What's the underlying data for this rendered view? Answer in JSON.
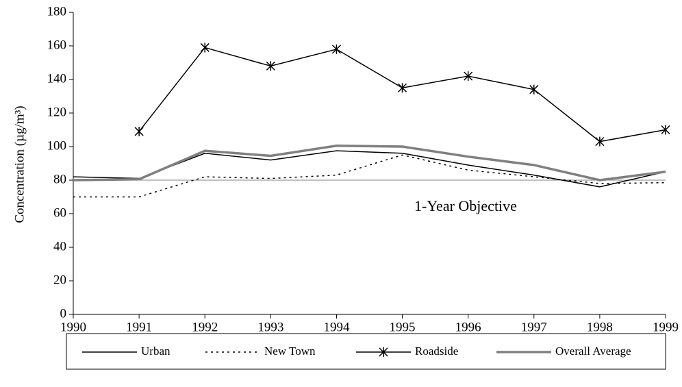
{
  "chart_data": {
    "type": "line",
    "y_label": "Concentration (µg/m³)",
    "x": [
      1990,
      1991,
      1992,
      1993,
      1994,
      1995,
      1996,
      1997,
      1998,
      1999
    ],
    "xlim": [
      1990,
      1999
    ],
    "xticks": [
      1990,
      1991,
      1992,
      1993,
      1994,
      1995,
      1996,
      1997,
      1998,
      1999
    ],
    "ylim": [
      0,
      180
    ],
    "yticks": [
      0,
      20,
      40,
      60,
      80,
      100,
      120,
      140,
      160,
      180
    ],
    "objective": {
      "value": 80,
      "label": "1-Year Objective"
    },
    "legend": "bottom",
    "series": [
      {
        "name": "Urban",
        "color": "#000000",
        "line_style": "solid",
        "line_width": 1.5,
        "values": [
          82,
          81,
          96,
          92,
          97.5,
          96,
          89,
          83,
          76,
          85
        ]
      },
      {
        "name": "New Town",
        "color": "#000000",
        "line_style": "dotted",
        "line_width": 1.5,
        "values": [
          70,
          70,
          82,
          81,
          83,
          95,
          86,
          82,
          78,
          78.5
        ]
      },
      {
        "name": "Roadside",
        "color": "#000000",
        "line_style": "solid",
        "line_width": 1.5,
        "marker": "asterisk",
        "values": [
          null,
          109,
          159,
          148,
          158,
          135,
          142,
          134,
          103,
          110
        ]
      },
      {
        "name": "Overall Average",
        "color": "#808080",
        "line_style": "solid",
        "line_width": 3.5,
        "values": [
          80,
          80.5,
          97.5,
          94.5,
          100.5,
          100,
          94,
          89,
          80,
          85
        ]
      }
    ]
  }
}
